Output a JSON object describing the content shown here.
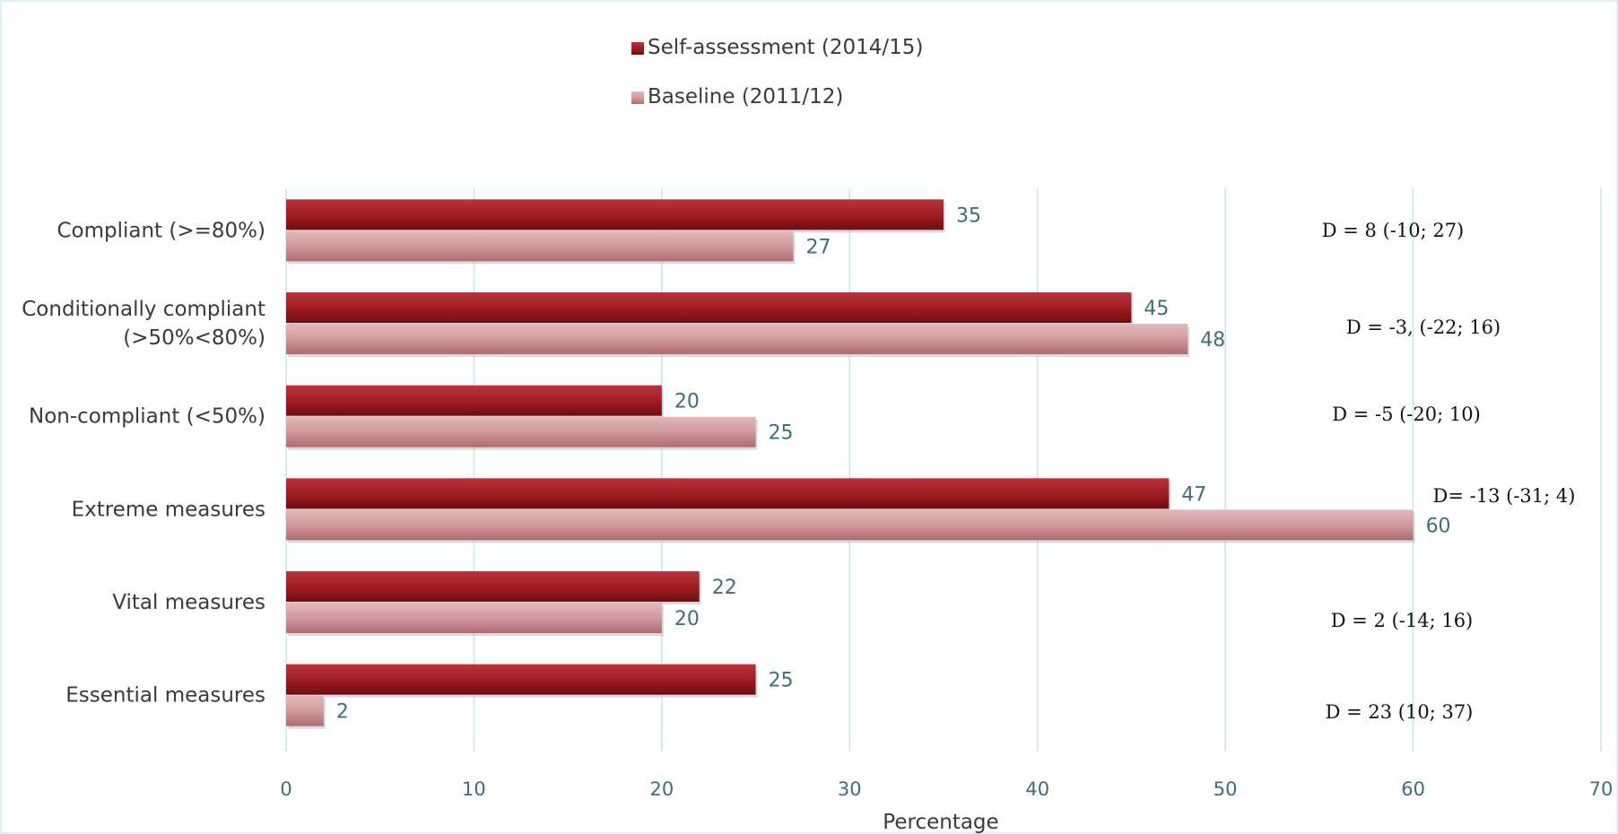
{
  "chart_data": {
    "type": "bar",
    "orientation": "horizontal",
    "categories": [
      "Compliant (>=80%)",
      [
        "Conditionally compliant",
        "(>50%<80%)"
      ],
      "Non-compliant (<50%)",
      "Extreme measures",
      "Vital measures",
      "Essential measures"
    ],
    "series": [
      {
        "name": "Self-assessment (2014/15)",
        "values": [
          35,
          45,
          20,
          47,
          22,
          25
        ],
        "color": "#9e1b20"
      },
      {
        "name": "Baseline (2011/12)",
        "values": [
          27,
          48,
          25,
          60,
          20,
          2
        ],
        "color": "#c9868a"
      }
    ],
    "annotations": [
      "D = 8 (-10; 27)",
      "D = -3, (-22; 16)",
      "D = -5  (-20; 10)",
      "D= -13 (-31; 4)",
      "D = 2 (-14; 16)",
      "D = 23 (10; 37)"
    ],
    "xlabel": "Percentage",
    "ylabel": "",
    "title": "",
    "xlim": [
      0,
      70
    ],
    "xticks": [
      0,
      10,
      20,
      30,
      40,
      50,
      60,
      70
    ],
    "grid": true,
    "legend_position": "top-center"
  }
}
